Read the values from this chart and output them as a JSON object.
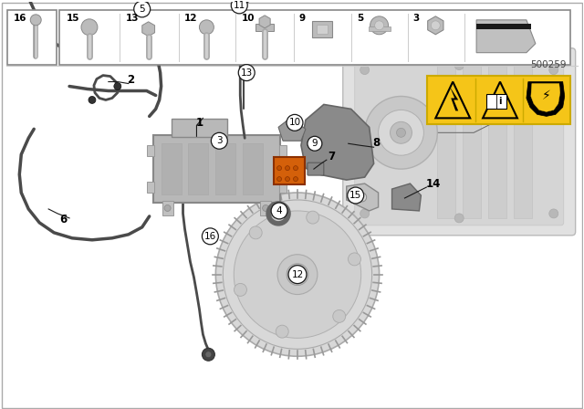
{
  "bg_color": "#ffffff",
  "footer_number": "500259",
  "warn_color": "#f5c518",
  "wire_color": "#4a4a4a",
  "part_fill": "#b8b8b8",
  "engine_fill": "#d8d8d8",
  "highlight_color": "#d4600a",
  "shield_color": "#8a8a8a",
  "bottom_labels": [
    "16",
    "15",
    "13",
    "12",
    "10",
    "9",
    "5",
    "3"
  ],
  "circled_parts": [
    "3",
    "4",
    "5",
    "9",
    "10",
    "11",
    "12",
    "13",
    "15",
    "16"
  ],
  "plain_parts": [
    "1",
    "2",
    "6",
    "7",
    "8",
    "14"
  ]
}
